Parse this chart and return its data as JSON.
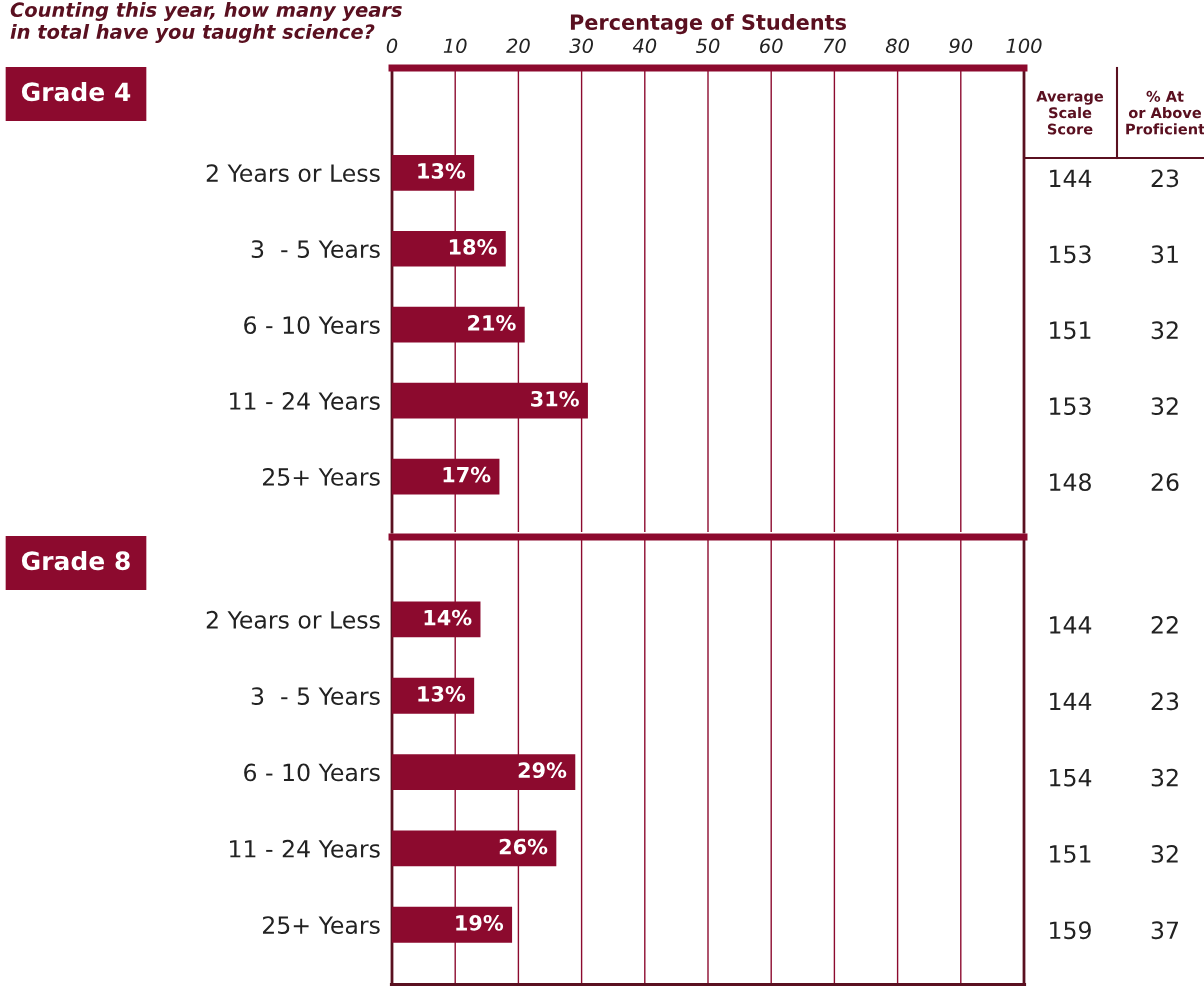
{
  "chart_data": [
    {
      "type": "bar",
      "orientation": "horizontal",
      "title": "Grade 4",
      "xlabel": "Percentage of Students",
      "categories": [
        "2 Years or Less",
        "3  - 5 Years",
        "6 - 10 Years",
        "11 - 24 Years",
        "25+ Years"
      ],
      "values": [
        13,
        18,
        21,
        31,
        17
      ],
      "value_labels": [
        "13%",
        "18%",
        "21%",
        "31%",
        "17%"
      ],
      "color": "#8c0a2e",
      "xlim": [
        0,
        100
      ],
      "xticks": [
        0,
        10,
        20,
        30,
        40,
        50,
        60,
        70,
        80,
        90,
        100
      ],
      "grid": "x",
      "legend": false,
      "annotations": [
        "Counting this year, how many years\nin total have you taught science?",
        "Average\nScale\nScore",
        "% At\nor Above\nProficient",
        "144",
        "23",
        "153",
        "31",
        "151",
        "32",
        "153",
        "32",
        "148",
        "26"
      ]
    },
    {
      "type": "bar",
      "orientation": "horizontal",
      "title": "Grade 8",
      "categories": [
        "2 Years or Less",
        "3  - 5 Years",
        "6 - 10 Years",
        "11 - 24 Years",
        "25+ Years"
      ],
      "values": [
        14,
        13,
        29,
        26,
        19
      ],
      "value_labels": [
        "14%",
        "13%",
        "29%",
        "26%",
        "19%"
      ],
      "color": "#8c0a2e",
      "xlim": [
        0,
        100
      ],
      "xticks": [
        0,
        10,
        20,
        30,
        40,
        50,
        60,
        70,
        80,
        90,
        100
      ],
      "grid": "x",
      "legend": false,
      "tick_labels": "y",
      "annotations": [
        "144",
        "22",
        "144",
        "23",
        "154",
        "32",
        "151",
        "32",
        "159",
        "37"
      ]
    }
  ]
}
